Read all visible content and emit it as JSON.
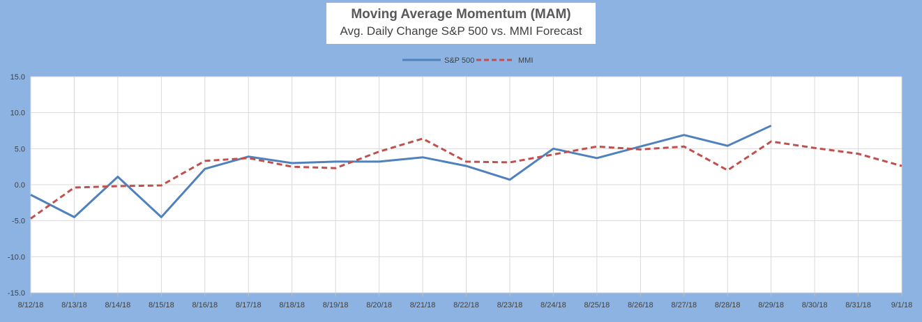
{
  "chart_data": {
    "type": "line",
    "title": "Moving Average Momentum (MAM)",
    "subtitle": "Avg. Daily Change S&P 500 vs. MMI Forecast",
    "categories": [
      "8/12/18",
      "8/13/18",
      "8/14/18",
      "8/15/18",
      "8/16/18",
      "8/17/18",
      "8/18/18",
      "8/19/18",
      "8/20/18",
      "8/21/18",
      "8/22/18",
      "8/23/18",
      "8/24/18",
      "8/25/18",
      "8/26/18",
      "8/27/18",
      "8/28/18",
      "8/29/18",
      "8/30/18",
      "8/31/18",
      "9/1/18"
    ],
    "series": [
      {
        "name": "S&P 500",
        "color": "#4f81bd",
        "dash": "solid",
        "values": [
          -1.4,
          -4.5,
          1.1,
          -4.5,
          2.2,
          3.9,
          3.0,
          3.2,
          3.2,
          3.8,
          2.6,
          0.7,
          5.0,
          3.7,
          5.3,
          6.9,
          5.4,
          8.2,
          null,
          null,
          null
        ]
      },
      {
        "name": "MMI",
        "color": "#c0504d",
        "dash": "dashed",
        "values": [
          -4.7,
          -0.4,
          -0.2,
          -0.1,
          3.3,
          3.7,
          2.5,
          2.3,
          4.6,
          6.4,
          3.2,
          3.1,
          4.2,
          5.3,
          4.9,
          5.3,
          2.0,
          6.0,
          5.1,
          4.3,
          2.6
        ]
      }
    ],
    "ylim": [
      -15.0,
      15.0
    ],
    "y_ticks": [
      "15.0",
      "10.0",
      "5.0",
      "0.0",
      "-5.0",
      "-10.0",
      "-15.0"
    ],
    "y_tick_values": [
      15,
      10,
      5,
      0,
      -5,
      -10,
      -15
    ],
    "grid": true,
    "legend_position": "top-center",
    "plot_background": "#ffffff",
    "chart_background": "#8db3e2"
  }
}
